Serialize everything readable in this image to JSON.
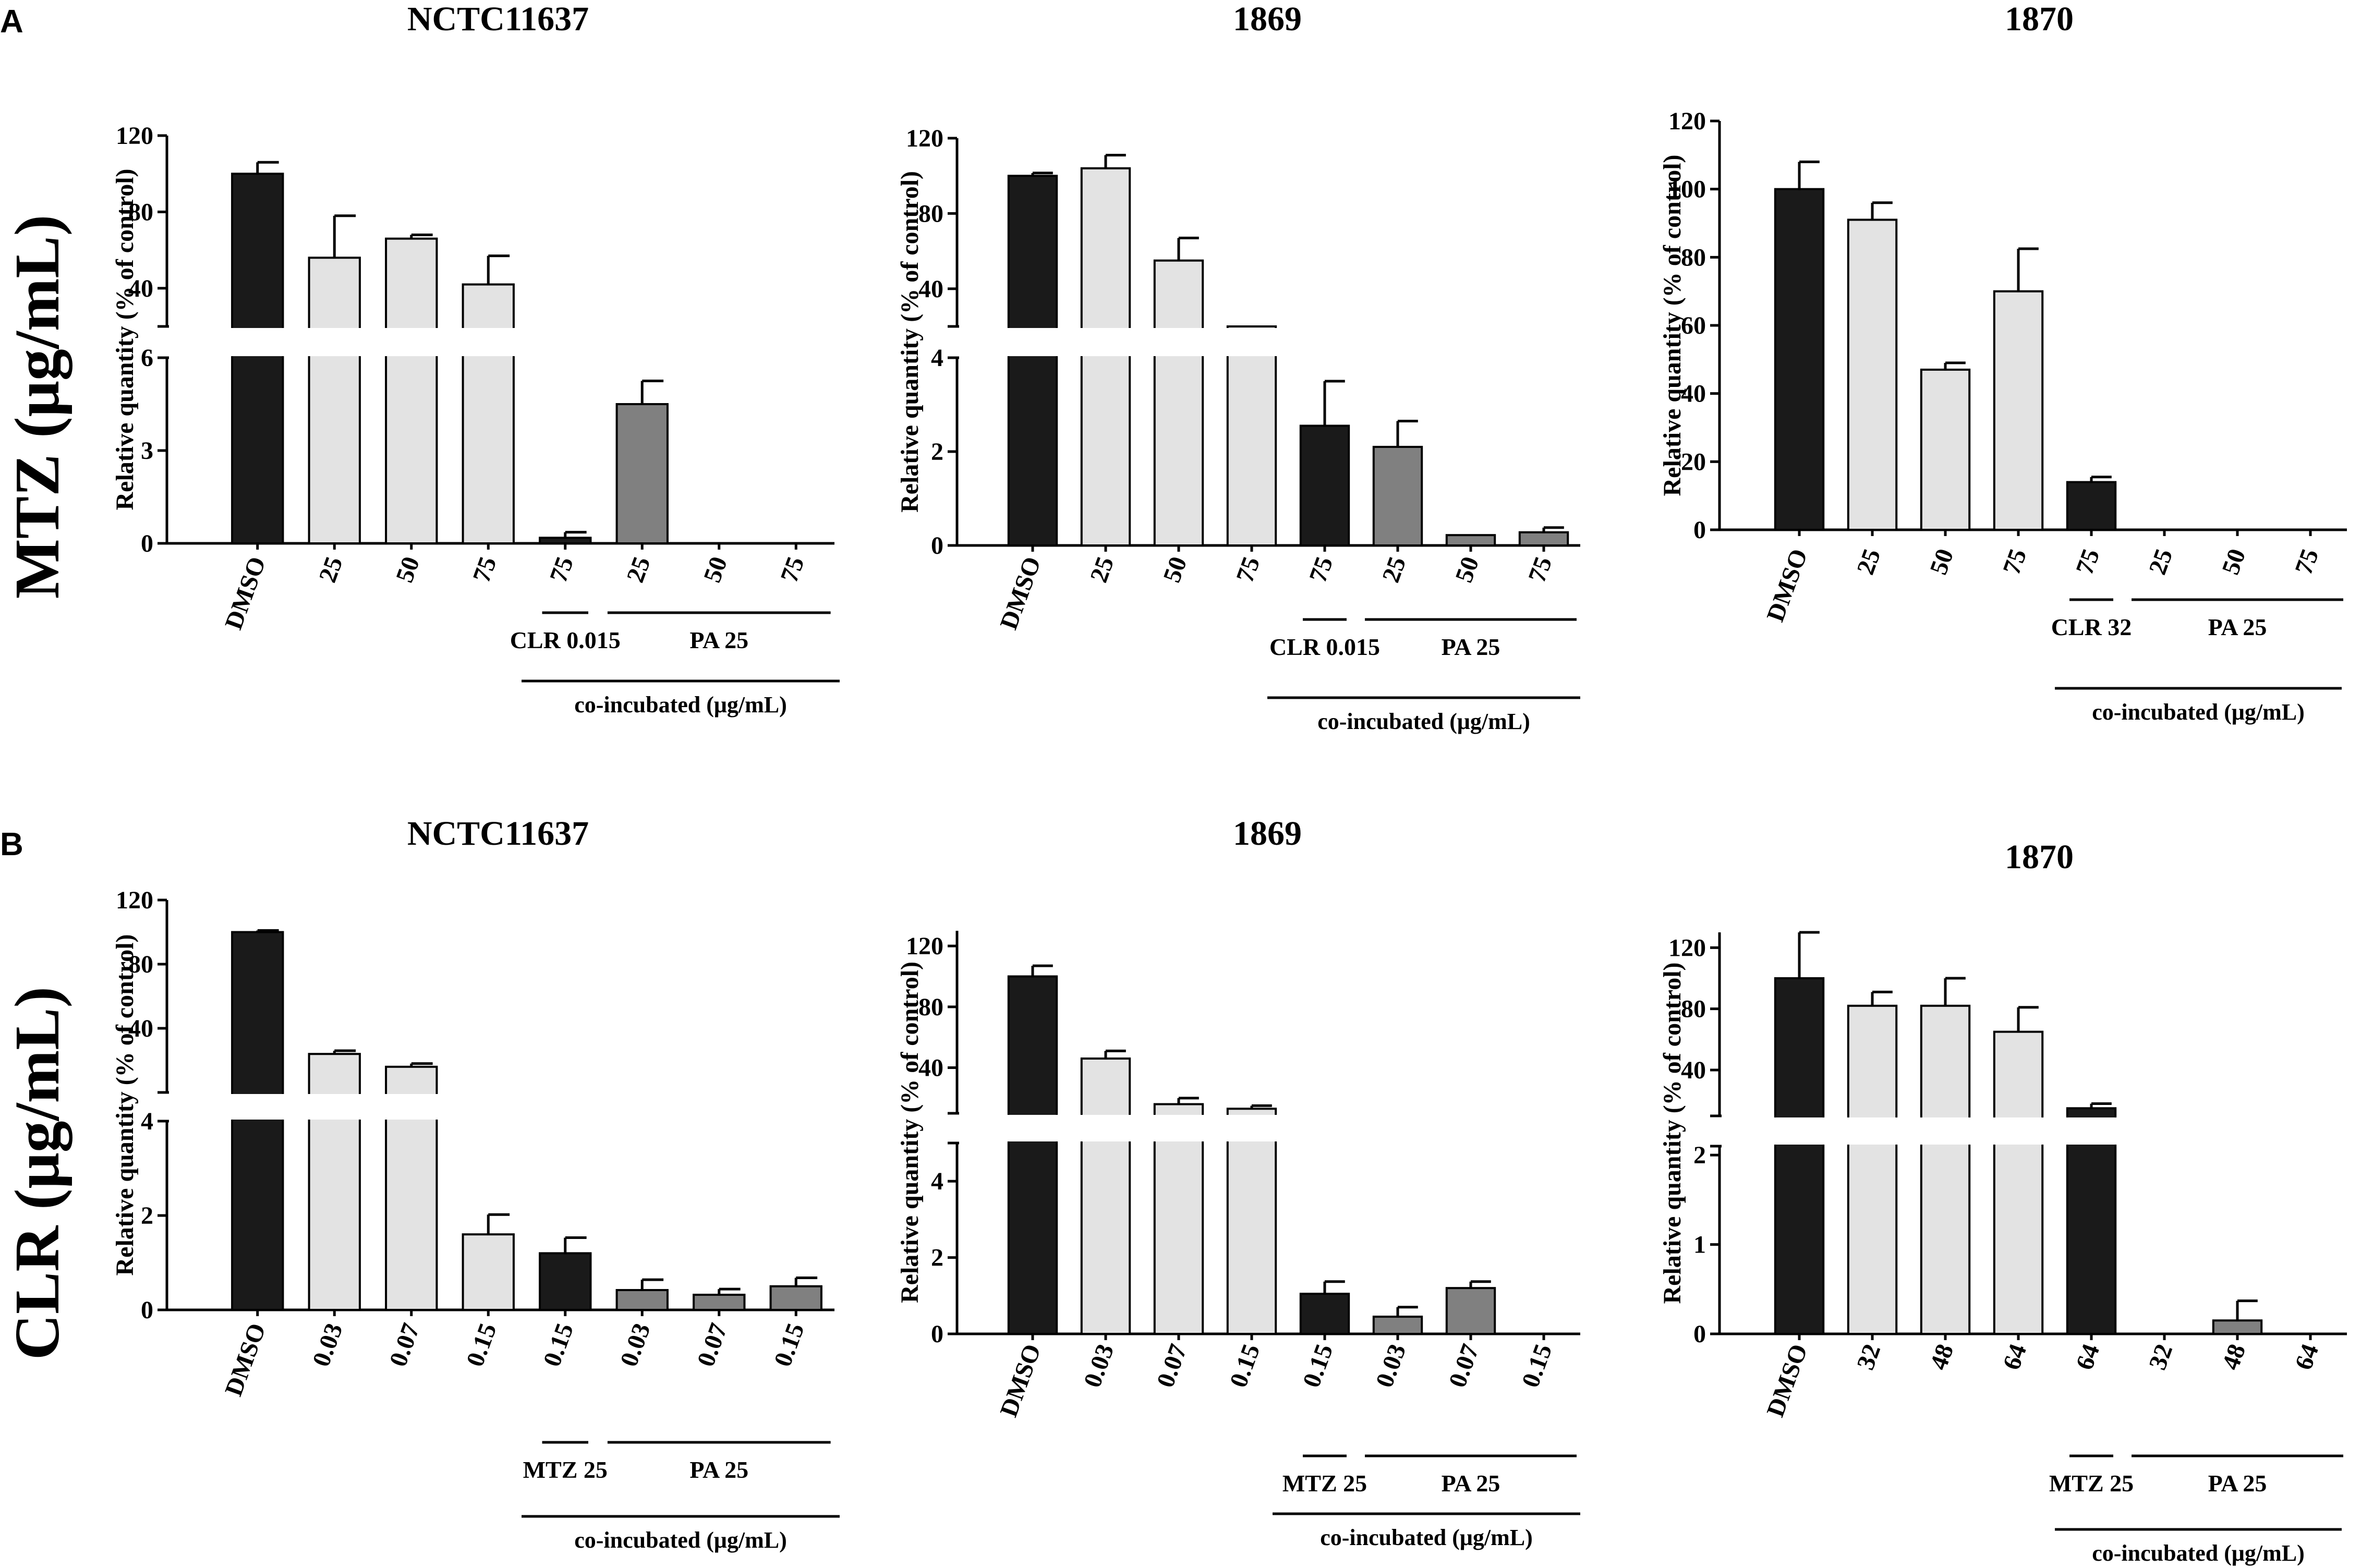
{
  "colors": {
    "dmso": "#1a1a1a",
    "single": "#e3e3e3",
    "clr_co": "#1a1a1a",
    "pa_co": "#808080",
    "axis": "#000000"
  },
  "panels": [
    {
      "letter": "A",
      "row_label": "MTZ (μg/mL)"
    },
    {
      "letter": "B",
      "row_label": "CLR (μg/mL)"
    }
  ],
  "chart_data": [
    {
      "type": "bar",
      "panel": "A",
      "title": "NCTC11637",
      "ylabel": "Relative quantity (% of control)",
      "broken_axis": true,
      "lower_ylim": [
        0,
        6
      ],
      "lower_ticks": [
        "0",
        "3",
        "6"
      ],
      "upper_ylim": [
        20,
        120
      ],
      "upper_ticks": [
        "40",
        "80",
        "120"
      ],
      "categories": [
        "DMSO",
        "25",
        "50",
        "75",
        "75",
        "25",
        "50",
        "75"
      ],
      "values": [
        100,
        56,
        66,
        42,
        0.18,
        4.5,
        0,
        0
      ],
      "errors": [
        6,
        22,
        2,
        15,
        0.18,
        0.75,
        0,
        0
      ],
      "bar_groups": [
        "dmso",
        "single",
        "single",
        "single",
        "clr_co",
        "pa_co",
        "pa_co",
        "pa_co"
      ],
      "groups": [
        {
          "label": "CLR 0.015",
          "from": 4,
          "to": 4
        },
        {
          "label": "PA 25",
          "from": 5,
          "to": 7
        }
      ],
      "co_label": "co-incubated (μg/mL)"
    },
    {
      "type": "bar",
      "panel": "A",
      "title": "1869",
      "ylabel": "Relative quantity (% of control)",
      "broken_axis": true,
      "lower_ylim": [
        0,
        4
      ],
      "lower_ticks": [
        "0",
        "2",
        "4"
      ],
      "upper_ylim": [
        20,
        120
      ],
      "upper_ticks": [
        "40",
        "80",
        "120"
      ],
      "categories": [
        "DMSO",
        "25",
        "50",
        "75",
        "75",
        "25",
        "50",
        "75"
      ],
      "values": [
        100,
        104,
        55,
        18,
        2.55,
        2.1,
        0.22,
        0.28
      ],
      "errors": [
        1.5,
        7,
        12,
        0,
        0.95,
        0.55,
        0,
        0.1
      ],
      "bar_groups": [
        "dmso",
        "single",
        "single",
        "single",
        "clr_co",
        "pa_co",
        "pa_co",
        "pa_co"
      ],
      "groups": [
        {
          "label": "CLR 0.015",
          "from": 4,
          "to": 4
        },
        {
          "label": "PA 25",
          "from": 5,
          "to": 7
        }
      ],
      "co_label": "co-incubated (μg/mL)"
    },
    {
      "type": "bar",
      "panel": "A",
      "title": "1870",
      "ylabel": "Relative quantity (% of control)",
      "broken_axis": false,
      "ylim": [
        0,
        120
      ],
      "ticks": [
        "0",
        "20",
        "40",
        "60",
        "80",
        "100",
        "120"
      ],
      "categories": [
        "DMSO",
        "25",
        "50",
        "75",
        "75",
        "25",
        "50",
        "75"
      ],
      "values": [
        100,
        91,
        47,
        70,
        14,
        0,
        0,
        0
      ],
      "errors": [
        8,
        5,
        2,
        12.5,
        1.5,
        0,
        0,
        0
      ],
      "bar_groups": [
        "dmso",
        "single",
        "single",
        "single",
        "clr_co",
        "pa_co",
        "pa_co",
        "pa_co"
      ],
      "groups": [
        {
          "label": "CLR 32",
          "from": 4,
          "to": 4
        },
        {
          "label": "PA 25",
          "from": 5,
          "to": 7
        }
      ],
      "co_label": "co-incubated (μg/mL)"
    },
    {
      "type": "bar",
      "panel": "B",
      "title": "NCTC11637",
      "ylabel": "Relative quantity (% of control)",
      "broken_axis": true,
      "lower_ylim": [
        0,
        4
      ],
      "lower_ticks": [
        "0",
        "2",
        "4"
      ],
      "upper_ylim": [
        0,
        120
      ],
      "upper_ticks": [
        "40",
        "80",
        "120"
      ],
      "categories": [
        "DMSO",
        "0.03",
        "0.07",
        "0.15",
        "0.15",
        "0.03",
        "0.07",
        "0.15"
      ],
      "values": [
        100,
        24,
        16,
        1.6,
        1.2,
        0.42,
        0.32,
        0.5
      ],
      "errors": [
        1,
        2,
        2,
        0.42,
        0.33,
        0.22,
        0.12,
        0.18
      ],
      "bar_groups": [
        "dmso",
        "single",
        "single",
        "single",
        "clr_co",
        "pa_co",
        "pa_co",
        "pa_co"
      ],
      "groups": [
        {
          "label": "MTZ 25",
          "from": 4,
          "to": 4
        },
        {
          "label": "PA 25",
          "from": 5,
          "to": 7
        }
      ],
      "co_label": "co-incubated (μg/mL)"
    },
    {
      "type": "bar",
      "panel": "B",
      "title": "1869",
      "ylabel": "Relative quantity (% of control)",
      "broken_axis": true,
      "lower_ylim": [
        0,
        5
      ],
      "lower_ticks": [
        "0",
        "2",
        "4"
      ],
      "upper_ylim": [
        10,
        130
      ],
      "upper_ticks": [
        "40",
        "80",
        "120"
      ],
      "categories": [
        "DMSO",
        "0.03",
        "0.07",
        "0.15",
        "0.15",
        "0.03",
        "0.07",
        "0.15"
      ],
      "values": [
        100,
        46,
        16,
        13,
        1.05,
        0.45,
        1.2,
        0
      ],
      "errors": [
        7,
        5,
        4,
        2,
        0.32,
        0.25,
        0.17,
        0
      ],
      "bar_groups": [
        "dmso",
        "single",
        "single",
        "single",
        "clr_co",
        "pa_co",
        "pa_co",
        "pa_co"
      ],
      "groups": [
        {
          "label": "MTZ 25",
          "from": 4,
          "to": 4
        },
        {
          "label": "PA 25",
          "from": 5,
          "to": 7
        }
      ],
      "co_label": "co-incubated (μg/mL)"
    },
    {
      "type": "bar",
      "panel": "B",
      "title": "1870",
      "ylabel": "Relative quantity (% of control)",
      "broken_axis": true,
      "lower_ylim": [
        0,
        2.1
      ],
      "lower_ticks": [
        "0",
        "1",
        "2"
      ],
      "upper_ylim": [
        10,
        130
      ],
      "upper_ticks": [
        "40",
        "80",
        "120"
      ],
      "categories": [
        "DMSO",
        "32",
        "48",
        "64",
        "64",
        "32",
        "48",
        "64"
      ],
      "values": [
        100,
        82,
        82,
        65,
        15,
        0,
        0.15,
        0
      ],
      "errors": [
        30,
        9,
        18,
        16,
        3,
        0,
        0.22,
        0
      ],
      "bar_groups": [
        "dmso",
        "single",
        "single",
        "single",
        "clr_co",
        "pa_co",
        "pa_co",
        "pa_co"
      ],
      "groups": [
        {
          "label": "MTZ 25",
          "from": 4,
          "to": 4
        },
        {
          "label": "PA 25",
          "from": 5,
          "to": 7
        }
      ],
      "co_label": "co-incubated (μg/mL)"
    }
  ]
}
